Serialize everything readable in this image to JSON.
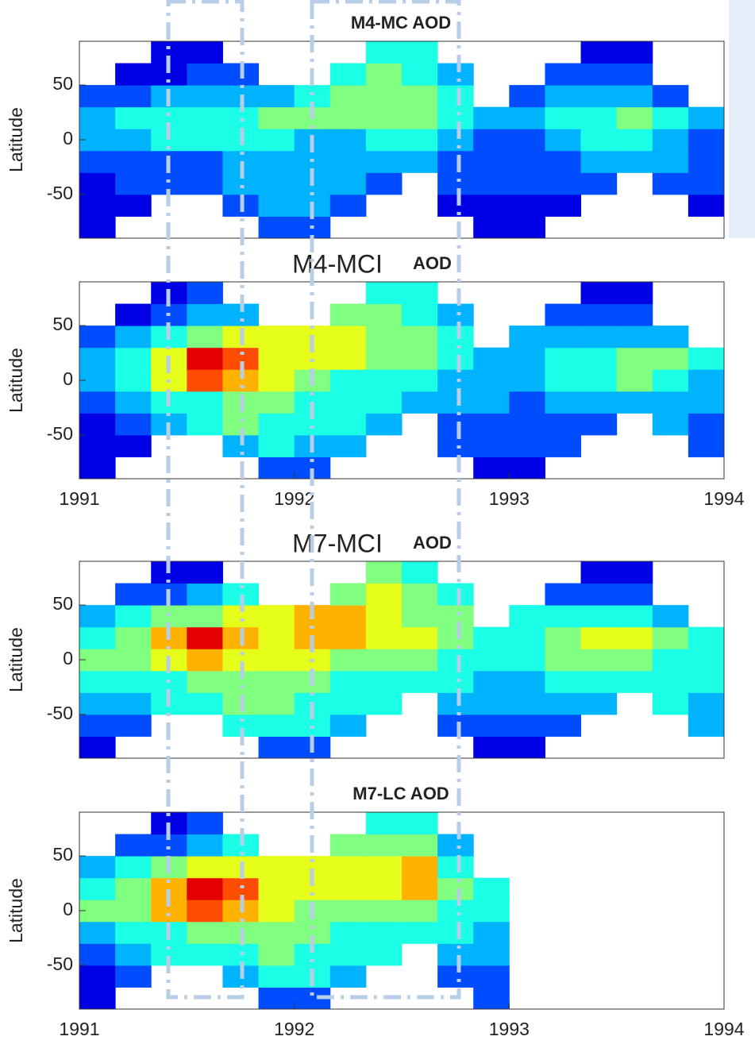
{
  "chart_data": [
    {
      "type": "heatmap",
      "title": "M4-MC AOD",
      "y_label": "Latitude",
      "colormap": "jet",
      "zlim": [
        0,
        1
      ],
      "xlim": [
        1991,
        1994
      ],
      "ylim": [
        -90,
        90
      ],
      "yticks": [
        -50,
        0,
        50
      ],
      "xbins": [
        1991,
        1991.1667,
        1991.3333,
        1991.5,
        1991.6667,
        1991.8333,
        1992,
        1992.1667,
        1992.3333,
        1992.5,
        1992.6667,
        1992.8333,
        1993,
        1993.1667,
        1993.3333,
        1993.5,
        1993.6667,
        1993.8333,
        1994
      ],
      "ybins": [
        -90,
        -70,
        -50,
        -30,
        -10,
        10,
        30,
        50,
        70,
        90
      ],
      "values": [
        [
          0.1,
          null,
          null,
          null,
          null,
          0.2,
          0.2,
          null,
          null,
          null,
          null,
          0.1,
          0.1,
          null,
          null,
          null,
          null,
          null
        ],
        [
          0.1,
          0.1,
          null,
          null,
          0.2,
          0.3,
          0.3,
          0.2,
          null,
          null,
          0.1,
          0.1,
          0.1,
          0.1,
          null,
          null,
          null,
          0.1
        ],
        [
          0.1,
          0.2,
          0.2,
          0.2,
          0.3,
          0.3,
          0.3,
          0.3,
          0.2,
          null,
          0.2,
          0.2,
          0.2,
          0.2,
          0.2,
          null,
          0.2,
          0.2
        ],
        [
          0.2,
          0.2,
          0.2,
          0.2,
          0.3,
          0.3,
          0.3,
          0.3,
          0.3,
          0.3,
          0.2,
          0.2,
          0.2,
          0.2,
          0.3,
          0.3,
          0.3,
          0.2
        ],
        [
          0.3,
          0.3,
          0.4,
          0.4,
          0.4,
          0.4,
          0.3,
          0.3,
          0.4,
          0.4,
          0.3,
          0.2,
          0.2,
          0.3,
          0.4,
          0.4,
          0.3,
          0.2
        ],
        [
          0.3,
          0.4,
          0.4,
          0.4,
          0.4,
          0.5,
          0.5,
          0.5,
          0.5,
          0.5,
          0.4,
          0.3,
          0.3,
          0.4,
          0.4,
          0.5,
          0.4,
          0.3
        ],
        [
          0.2,
          0.2,
          0.3,
          0.3,
          0.3,
          0.3,
          0.4,
          0.5,
          0.5,
          0.5,
          0.4,
          null,
          0.2,
          0.3,
          0.3,
          0.3,
          0.2,
          null
        ],
        [
          null,
          0.1,
          0.1,
          0.2,
          0.2,
          null,
          null,
          0.4,
          0.5,
          0.4,
          0.3,
          null,
          null,
          0.2,
          0.2,
          0.2,
          null,
          null
        ],
        [
          null,
          null,
          0.1,
          0.1,
          null,
          null,
          null,
          null,
          0.4,
          0.4,
          null,
          null,
          null,
          null,
          0.1,
          0.1,
          null,
          null
        ]
      ]
    },
    {
      "type": "heatmap",
      "title_overlay": "M4-MCI",
      "title": "AOD",
      "y_label": "Latitude",
      "colormap": "jet",
      "zlim": [
        0,
        1
      ],
      "xlim": [
        1991,
        1994
      ],
      "xticks": [
        1991,
        1992,
        1993,
        1994
      ],
      "ylim": [
        -90,
        90
      ],
      "yticks": [
        -50,
        0,
        50
      ],
      "xbins": [
        1991,
        1991.1667,
        1991.3333,
        1991.5,
        1991.6667,
        1991.8333,
        1992,
        1992.1667,
        1992.3333,
        1992.5,
        1992.6667,
        1992.8333,
        1993,
        1993.1667,
        1993.3333,
        1993.5,
        1993.6667,
        1993.8333,
        1994
      ],
      "ybins": [
        -90,
        -70,
        -50,
        -30,
        -10,
        10,
        30,
        50,
        70,
        90
      ],
      "values": [
        [
          0.1,
          null,
          null,
          null,
          null,
          0.2,
          0.2,
          null,
          null,
          null,
          null,
          0.1,
          0.1,
          null,
          null,
          null,
          null,
          null
        ],
        [
          0.1,
          0.1,
          null,
          null,
          0.3,
          0.4,
          0.3,
          0.3,
          null,
          null,
          0.2,
          0.2,
          0.2,
          0.2,
          null,
          null,
          null,
          0.2
        ],
        [
          0.1,
          0.2,
          0.3,
          0.4,
          0.5,
          0.4,
          0.4,
          0.4,
          0.3,
          null,
          0.2,
          0.2,
          0.2,
          0.2,
          0.2,
          null,
          0.3,
          0.2
        ],
        [
          0.2,
          0.3,
          0.4,
          0.4,
          0.5,
          0.5,
          0.4,
          0.4,
          0.4,
          0.3,
          0.3,
          0.3,
          0.2,
          0.3,
          0.3,
          0.3,
          0.3,
          0.3
        ],
        [
          0.3,
          0.4,
          0.6,
          0.8,
          0.7,
          0.6,
          0.5,
          0.4,
          0.4,
          0.4,
          0.3,
          0.3,
          0.3,
          0.4,
          0.4,
          0.5,
          0.4,
          0.3
        ],
        [
          0.3,
          0.4,
          0.6,
          0.9,
          0.8,
          0.6,
          0.6,
          0.6,
          0.5,
          0.5,
          0.4,
          0.3,
          0.3,
          0.4,
          0.4,
          0.5,
          0.5,
          0.4
        ],
        [
          0.2,
          0.3,
          0.4,
          0.5,
          0.6,
          0.6,
          0.6,
          0.6,
          0.5,
          0.5,
          0.4,
          null,
          0.3,
          0.3,
          0.3,
          0.3,
          0.3,
          null
        ],
        [
          null,
          0.1,
          0.2,
          0.3,
          0.3,
          null,
          null,
          0.5,
          0.5,
          0.4,
          0.3,
          null,
          null,
          0.2,
          0.2,
          0.2,
          null,
          null
        ],
        [
          null,
          null,
          0.1,
          0.2,
          null,
          null,
          null,
          null,
          0.4,
          0.4,
          null,
          null,
          null,
          null,
          0.1,
          0.1,
          null,
          null
        ]
      ]
    },
    {
      "type": "heatmap",
      "title_overlay": "M7-MCI",
      "title": "AOD",
      "y_label": "Latitude",
      "colormap": "jet",
      "zlim": [
        0,
        1
      ],
      "xlim": [
        1991,
        1994
      ],
      "ylim": [
        -90,
        90
      ],
      "yticks": [
        -50,
        0,
        50
      ],
      "xbins": [
        1991,
        1991.1667,
        1991.3333,
        1991.5,
        1991.6667,
        1991.8333,
        1992,
        1992.1667,
        1992.3333,
        1992.5,
        1992.6667,
        1992.8333,
        1993,
        1993.1667,
        1993.3333,
        1993.5,
        1993.6667,
        1993.8333,
        1994
      ],
      "ybins": [
        -90,
        -70,
        -50,
        -30,
        -10,
        10,
        30,
        50,
        70,
        90
      ],
      "values": [
        [
          0.1,
          null,
          null,
          null,
          null,
          0.2,
          0.2,
          null,
          null,
          null,
          null,
          0.1,
          0.1,
          null,
          null,
          null,
          null,
          null
        ],
        [
          0.2,
          0.2,
          null,
          null,
          0.4,
          0.4,
          0.4,
          0.3,
          null,
          null,
          0.2,
          0.2,
          0.2,
          0.2,
          null,
          null,
          null,
          0.3
        ],
        [
          0.3,
          0.3,
          0.4,
          0.4,
          0.5,
          0.5,
          0.4,
          0.4,
          0.4,
          null,
          0.3,
          0.3,
          0.3,
          0.3,
          0.3,
          null,
          0.4,
          0.3
        ],
        [
          0.4,
          0.4,
          0.4,
          0.5,
          0.5,
          0.5,
          0.5,
          0.4,
          0.4,
          0.4,
          0.4,
          0.3,
          0.3,
          0.4,
          0.4,
          0.4,
          0.4,
          0.4
        ],
        [
          0.5,
          0.5,
          0.6,
          0.7,
          0.6,
          0.6,
          0.6,
          0.5,
          0.5,
          0.5,
          0.4,
          0.4,
          0.4,
          0.5,
          0.5,
          0.5,
          0.4,
          0.4
        ],
        [
          0.4,
          0.5,
          0.7,
          0.9,
          0.7,
          0.6,
          0.7,
          0.7,
          0.6,
          0.6,
          0.5,
          0.4,
          0.4,
          0.5,
          0.6,
          0.6,
          0.5,
          0.4
        ],
        [
          0.3,
          0.4,
          0.5,
          0.5,
          0.6,
          0.6,
          0.7,
          0.7,
          0.6,
          0.5,
          0.5,
          null,
          0.4,
          0.4,
          0.4,
          0.4,
          0.3,
          null
        ],
        [
          null,
          0.2,
          0.2,
          0.3,
          0.4,
          null,
          null,
          0.5,
          0.6,
          0.5,
          0.4,
          null,
          null,
          0.2,
          0.2,
          0.2,
          null,
          null
        ],
        [
          null,
          null,
          0.1,
          0.1,
          null,
          null,
          null,
          null,
          0.5,
          0.4,
          null,
          null,
          null,
          null,
          0.1,
          0.1,
          null,
          null
        ]
      ]
    },
    {
      "type": "heatmap",
      "title": "M7-LC AOD",
      "y_label": "Latitude",
      "colormap": "jet",
      "zlim": [
        0,
        1
      ],
      "xlim": [
        1991,
        1994
      ],
      "xticks": [
        1991,
        1992,
        1993,
        1994
      ],
      "ylim": [
        -90,
        90
      ],
      "yticks": [
        -50,
        0,
        50
      ],
      "xbins": [
        1991,
        1991.1667,
        1991.3333,
        1991.5,
        1991.6667,
        1991.8333,
        1992,
        1992.1667,
        1992.3333,
        1992.5,
        1992.6667,
        1992.8333,
        1993,
        1993.1667,
        1993.3333,
        1993.5,
        1993.6667,
        1993.8333,
        1994
      ],
      "ybins": [
        -90,
        -70,
        -50,
        -30,
        -10,
        10,
        30,
        50,
        70,
        90
      ],
      "values": [
        [
          0.1,
          null,
          null,
          null,
          null,
          0.2,
          0.2,
          null,
          null,
          null,
          null,
          0.2,
          null,
          null,
          null,
          null,
          null,
          null
        ],
        [
          0.1,
          0.2,
          null,
          null,
          0.3,
          0.4,
          0.4,
          0.3,
          null,
          null,
          0.2,
          0.2,
          null,
          null,
          null,
          null,
          null,
          null
        ],
        [
          0.2,
          0.3,
          0.4,
          0.4,
          0.4,
          0.5,
          0.4,
          0.4,
          0.4,
          null,
          0.3,
          0.3,
          null,
          null,
          null,
          null,
          null,
          null
        ],
        [
          0.3,
          0.4,
          0.4,
          0.5,
          0.5,
          0.5,
          0.5,
          0.4,
          0.4,
          0.4,
          0.4,
          0.3,
          null,
          null,
          null,
          null,
          null,
          null
        ],
        [
          0.5,
          0.5,
          0.7,
          0.8,
          0.7,
          0.6,
          0.5,
          0.5,
          0.5,
          0.5,
          0.4,
          0.4,
          null,
          null,
          null,
          null,
          null,
          null
        ],
        [
          0.4,
          0.5,
          0.7,
          0.9,
          0.8,
          0.6,
          0.6,
          0.6,
          0.6,
          0.7,
          0.5,
          0.4,
          null,
          null,
          null,
          null,
          null,
          null
        ],
        [
          0.3,
          0.4,
          0.5,
          0.6,
          0.6,
          0.6,
          0.6,
          0.6,
          0.6,
          0.7,
          0.4,
          null,
          null,
          null,
          null,
          null,
          null,
          null
        ],
        [
          null,
          0.2,
          0.2,
          0.3,
          0.4,
          null,
          null,
          0.5,
          0.5,
          0.5,
          0.3,
          null,
          null,
          null,
          null,
          null,
          null,
          null
        ],
        [
          null,
          null,
          0.1,
          0.2,
          null,
          null,
          null,
          null,
          0.4,
          0.4,
          null,
          null,
          null,
          null,
          null,
          null,
          null,
          null
        ]
      ]
    }
  ]
}
